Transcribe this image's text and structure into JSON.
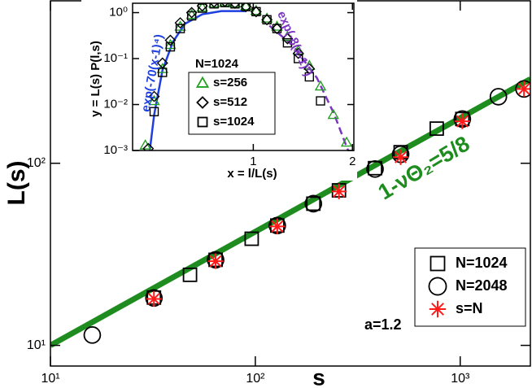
{
  "chart_data": [
    {
      "type": "scatter",
      "xlabel": "s",
      "ylabel": "L(s)",
      "xscale": "log",
      "yscale": "log",
      "xlim": [
        10,
        2200
      ],
      "ylim": [
        7.7,
        780
      ],
      "xticks": [
        {
          "value": 10,
          "label": "10¹"
        },
        {
          "value": 100,
          "label": "10²"
        },
        {
          "value": 1000,
          "label": "10³"
        }
      ],
      "yticks": [
        {
          "value": 10,
          "label": "10¹"
        },
        {
          "value": 100,
          "label": "10²"
        }
      ],
      "legend": "lower right",
      "series": [
        {
          "name": "N=1024",
          "marker": "square",
          "color": "#000000",
          "x": [
            32,
            48,
            64,
            96,
            128,
            192,
            256,
            384,
            512,
            768,
            1024
          ],
          "values": [
            18.3,
            24.4,
            29.5,
            38.5,
            45.5,
            60,
            71,
            94,
            115,
            155,
            175
          ]
        },
        {
          "name": "N=2048",
          "marker": "circle",
          "color": "#000000",
          "x": [
            16,
            32,
            64,
            128,
            192,
            384,
            512,
            1024,
            1536,
            2048
          ],
          "values": [
            11.4,
            18.2,
            29.5,
            45.5,
            60,
            93,
            112,
            175,
            232,
            256
          ]
        },
        {
          "name": "s=N",
          "marker": "star",
          "color": "#ff1a1a",
          "x": [
            32,
            64,
            128,
            256,
            512,
            1024,
            2048
          ],
          "values": [
            18,
            29,
            45,
            70,
            108,
            170,
            256
          ]
        }
      ],
      "curves": [
        {
          "name": "1-νΘ₂=5/8",
          "color": "#1e8c1e",
          "dash": false,
          "x": [
            10,
            2200
          ],
          "values": [
            10,
            290
          ]
        }
      ],
      "annotations": [
        "a=1.2"
      ]
    },
    {
      "type": "scatter",
      "xlabel": "x = l/L(s)",
      "ylabel": "y = L(s) P(l,s)",
      "xscale": "log",
      "yscale": "log",
      "xlim": [
        0.43,
        2.02
      ],
      "ylim": [
        0.001,
        1.6
      ],
      "xticks": [
        1,
        2
      ],
      "yticks": [
        {
          "value": 0.001,
          "label": "10⁻³"
        },
        {
          "value": 0.01,
          "label": "10⁻²"
        },
        {
          "value": 0.1,
          "label": "10⁻¹"
        },
        {
          "value": 1,
          "label": "10⁰"
        }
      ],
      "legend_title": "N=1024",
      "series": [
        {
          "name": "s=256",
          "marker": "triangle",
          "color": "#22a022",
          "x": [
            0.47,
            0.5,
            0.53,
            0.56,
            0.6,
            0.65,
            0.7,
            0.76,
            0.82,
            0.88,
            0.95,
            1.02,
            1.1,
            1.18,
            1.27,
            1.37,
            1.48,
            1.6,
            1.75,
            1.92
          ],
          "values": [
            0.0013,
            0.012,
            0.06,
            0.2,
            0.5,
            0.9,
            1.3,
            1.6,
            1.7,
            1.6,
            1.4,
            1.1,
            0.75,
            0.5,
            0.3,
            0.15,
            0.07,
            0.025,
            0.006,
            0.0015
          ]
        },
        {
          "name": "s=512",
          "marker": "diamond",
          "color": "#000000",
          "x": [
            0.48,
            0.5,
            0.53,
            0.56,
            0.6,
            0.65,
            0.7,
            0.76,
            0.82,
            0.88,
            0.95,
            1.02,
            1.1,
            1.18,
            1.27,
            1.37,
            1.48
          ],
          "values": [
            0.0011,
            0.015,
            0.08,
            0.25,
            0.6,
            1.0,
            1.4,
            1.7,
            1.75,
            1.6,
            1.35,
            1.05,
            0.7,
            0.45,
            0.27,
            0.13,
            0.06
          ]
        },
        {
          "name": "s=1024",
          "marker": "square",
          "color": "#000000",
          "x": [
            0.5,
            0.53,
            0.56,
            0.6,
            0.65,
            0.7,
            0.76,
            0.82,
            0.88,
            0.95,
            1.02,
            1.1,
            1.18,
            1.27,
            1.37,
            1.48,
            1.6
          ],
          "values": [
            0.007,
            0.05,
            0.18,
            0.45,
            0.85,
            1.25,
            1.55,
            1.65,
            1.55,
            1.35,
            1.05,
            0.7,
            0.45,
            0.22,
            0.1,
            0.04,
            0.012
          ]
        }
      ],
      "curves": [
        {
          "name": "exp(-70(x-1)⁴)",
          "color": "#1f3fe0",
          "dash": false,
          "x": [
            0.485,
            0.5,
            0.53,
            0.57,
            0.62,
            0.7,
            0.8,
            0.95
          ],
          "values": [
            0.001,
            0.006,
            0.056,
            0.23,
            0.57,
            0.92,
            1.08,
            1.08
          ]
        },
        {
          "name": "exp(-8(x-1)²)",
          "color": "#7b35c0",
          "dash": true,
          "x": [
            1.12,
            1.32,
            1.56,
            1.76,
            1.94
          ],
          "values": [
            0.52,
            0.19,
            0.038,
            0.0062,
            0.001
          ]
        }
      ]
    }
  ]
}
